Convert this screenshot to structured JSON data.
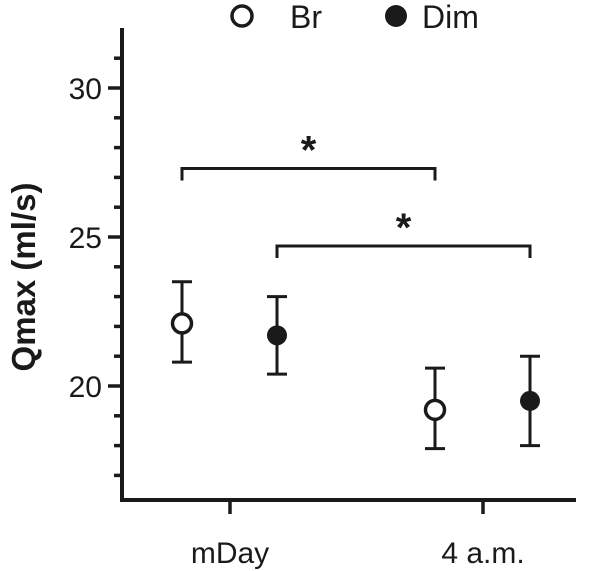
{
  "chart_data": {
    "type": "scatter",
    "title": "",
    "xlabel": "",
    "ylabel": "Qmax (ml/s)",
    "categories": [
      "mDay",
      "4 a.m."
    ],
    "ylim": [
      16,
      32
    ],
    "yticks": [
      20,
      25,
      30
    ],
    "grid": false,
    "legend_position": "top",
    "series": [
      {
        "name": "Br",
        "marker": "open-circle",
        "color": "#1a1a1a",
        "points": [
          {
            "category": "mDay",
            "mean": 22.1,
            "err_low": 20.8,
            "err_high": 23.5
          },
          {
            "category": "4 a.m.",
            "mean": 19.2,
            "err_low": 17.9,
            "err_high": 20.6
          }
        ]
      },
      {
        "name": "Dim",
        "marker": "filled-circle",
        "color": "#1a1a1a",
        "points": [
          {
            "category": "mDay",
            "mean": 21.7,
            "err_low": 20.4,
            "err_high": 23.0
          },
          {
            "category": "4 a.m.",
            "mean": 19.5,
            "err_low": 18.0,
            "err_high": 21.0
          }
        ]
      }
    ],
    "annotations": [
      {
        "label": "*",
        "from": {
          "series": "Br",
          "category": "mDay"
        },
        "to": {
          "series": "Br",
          "category": "4 a.m."
        },
        "y": 27.3
      },
      {
        "label": "*",
        "from": {
          "series": "Dim",
          "category": "mDay"
        },
        "to": {
          "series": "Dim",
          "category": "4 a.m."
        },
        "y": 24.7
      }
    ]
  }
}
